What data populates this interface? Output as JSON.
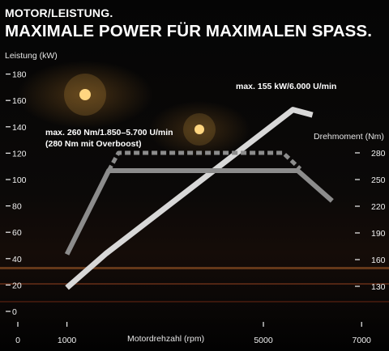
{
  "header": {
    "subtitle": "MOTOR/LEISTUNG.",
    "title": "MAXIMALE POWER FÜR MAXIMALEN SPASS."
  },
  "annotations": {
    "power_max": "max. 155 kW/6.000 U/min",
    "torque_max_line1": "max. 260 Nm/1.850–5.700 U/min",
    "torque_max_line2": "(280 Nm mit Overboost)"
  },
  "colors": {
    "power_line": "#d8d8d8",
    "torque_line": "#8c8c8c",
    "overboost_line": "#8c8c8c",
    "text": "#ffffff"
  },
  "chart_data": {
    "type": "line",
    "xlabel": "Motordrehzahl (rpm)",
    "ylabel_left": "Leistung (kW)",
    "ylabel_right": "Drehmoment (Nm)",
    "x_ticks": [
      {
        "value": 0,
        "label": "0"
      },
      {
        "value": 1000,
        "label": "1000"
      },
      {
        "value": 5000,
        "label": "5000"
      },
      {
        "value": 7000,
        "label": "7000"
      }
    ],
    "y_left_ticks": [
      0,
      20,
      40,
      60,
      80,
      100,
      120,
      140,
      160,
      180
    ],
    "y_right_ticks": [
      130,
      160,
      190,
      220,
      250,
      280
    ],
    "series": [
      {
        "axis": "left",
        "style": "solid-light",
        "x": [
          1000,
          1800,
          5600,
          6000
        ],
        "y": [
          18,
          44,
          153,
          149
        ]
      },
      {
        "axis": "right",
        "style": "solid-dark",
        "x": [
          1000,
          1850,
          5700,
          6400
        ],
        "y": [
          166,
          260,
          260,
          226
        ]
      },
      {
        "axis": "right",
        "style": "dashed",
        "x": [
          1850,
          2050,
          5400,
          5750
        ],
        "y": [
          260,
          280,
          280,
          262
        ]
      }
    ]
  }
}
